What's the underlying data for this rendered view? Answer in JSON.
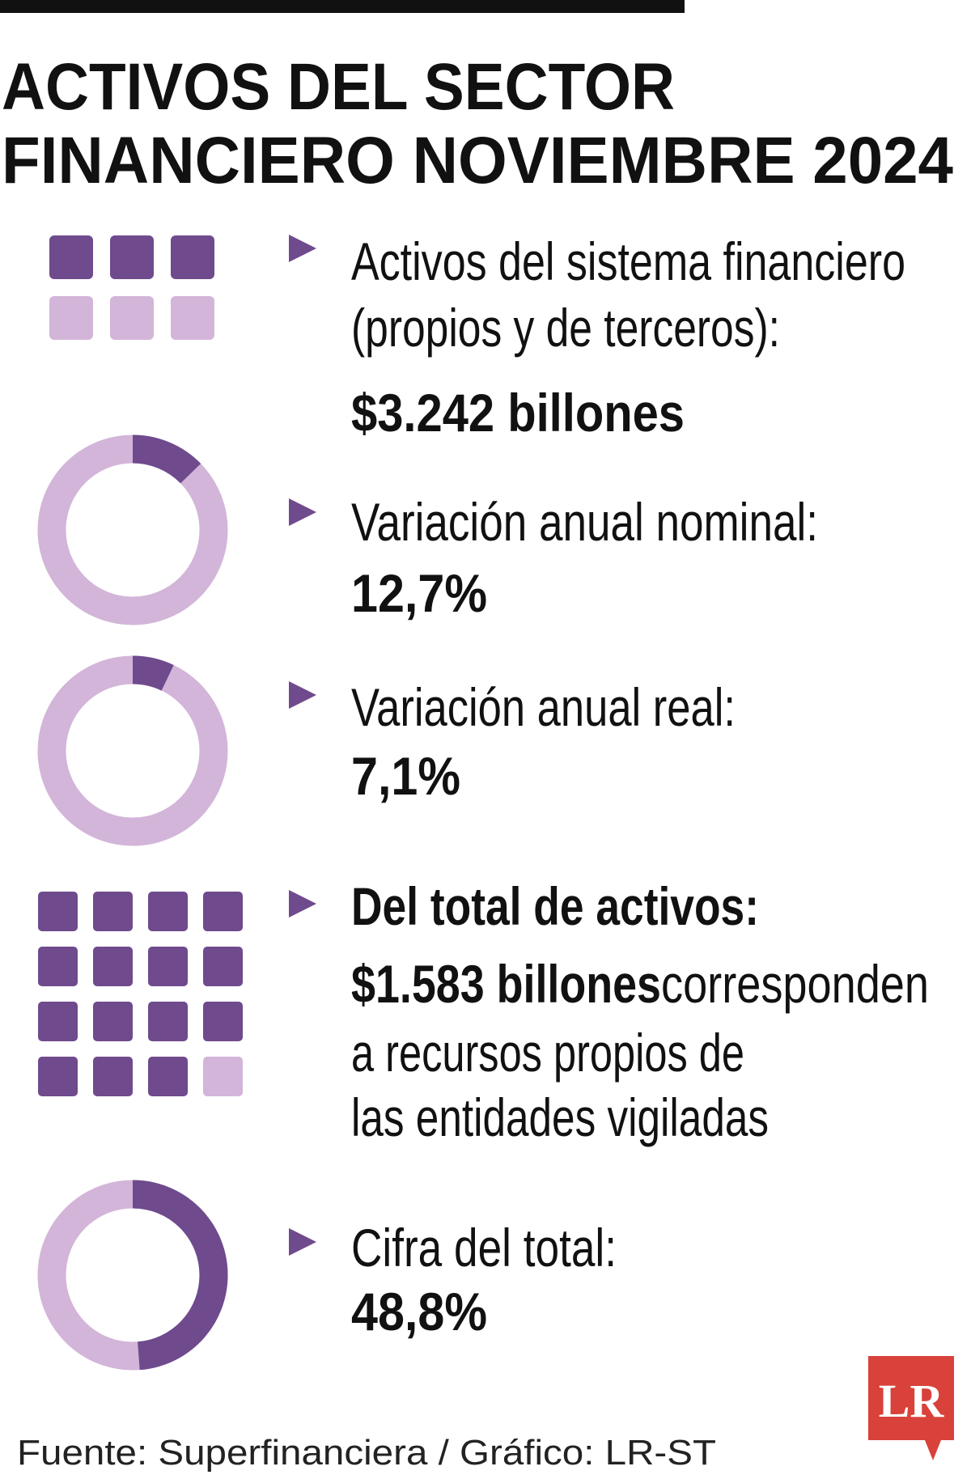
{
  "header": {
    "title": [
      "ACTIVOS DEL SECTOR",
      "FINANCIERO NOVIEMBRE 2024"
    ]
  },
  "items": [
    {
      "label": [
        "Activos del sistema financiero",
        "(propios y de terceros):"
      ],
      "value_label": "$3.242 billones"
    },
    {
      "label": [
        "Variación anual nominal:"
      ],
      "value": 12.7,
      "value_label": "12,7%"
    },
    {
      "label": [
        "Variación anual real:"
      ],
      "value": 7.1,
      "value_label": "7,1%"
    },
    {
      "label": [
        "Del total de activos:"
      ],
      "value_label": "$1.583 billones",
      "text": [
        " corresponden",
        "a recursos propios de",
        "las entidades vigiladas"
      ]
    },
    {
      "label": [
        "Cifra del total:"
      ],
      "value": 48.8,
      "value_label": "48,8%"
    }
  ],
  "source": "Fuente: Superfinanciera / Gráfico: LR-ST",
  "logo": "LR",
  "colors": {
    "dark": "#6f4a8d",
    "light": "#d3b5d9",
    "logo": "#d8423a"
  }
}
